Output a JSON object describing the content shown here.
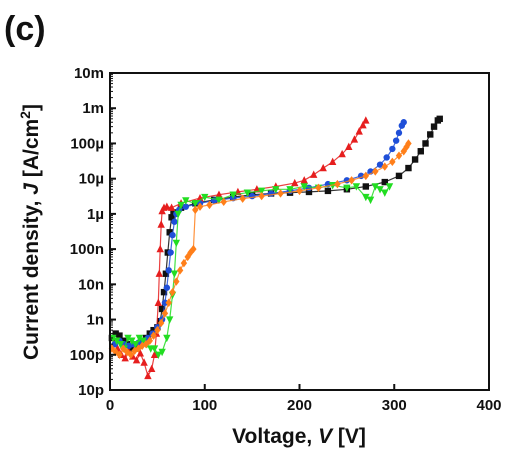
{
  "panel_label": "(c)",
  "chart_data": {
    "type": "scatter",
    "xlabel": "Voltage, V [V]",
    "ylabel": "Current density, J [A/cm2]",
    "x_axis": {
      "min": 0,
      "max": 400,
      "ticks": [
        0,
        100,
        200,
        300,
        400
      ],
      "tick_labels": [
        "0",
        "100",
        "200",
        "300",
        "400"
      ]
    },
    "y_axis": {
      "scale": "log",
      "min": 1e-11,
      "max": 0.01,
      "ticks": [
        1e-11,
        1e-10,
        1e-09,
        1e-08,
        1e-07,
        1e-06,
        1e-05,
        0.0001,
        0.001,
        0.01
      ],
      "tick_labels": [
        "10p",
        "100p",
        "1n",
        "10n",
        "100n",
        "1µ",
        "10µ",
        "100µ",
        "1m",
        "10m"
      ]
    },
    "grid": false,
    "legend": "none",
    "series": [
      {
        "color": "#111111",
        "marker": "square",
        "points": [
          [
            2,
            3e-10
          ],
          [
            6,
            4e-10
          ],
          [
            10,
            3.5e-10
          ],
          [
            14,
            2.5e-10
          ],
          [
            18,
            2e-10
          ],
          [
            22,
            1.6e-10
          ],
          [
            26,
            1.5e-10
          ],
          [
            30,
            1.8e-10
          ],
          [
            34,
            2.2e-10
          ],
          [
            38,
            3e-10
          ],
          [
            42,
            4e-10
          ],
          [
            46,
            5e-10
          ],
          [
            50,
            6e-10
          ],
          [
            53,
            9e-10
          ],
          [
            55,
            2e-09
          ],
          [
            57,
            6e-09
          ],
          [
            59,
            2e-08
          ],
          [
            61,
            8e-08
          ],
          [
            63,
            3e-07
          ],
          [
            65,
            8e-07
          ],
          [
            67,
            1.1e-06
          ],
          [
            75,
            1.5e-06
          ],
          [
            90,
            2e-06
          ],
          [
            110,
            2.5e-06
          ],
          [
            130,
            3e-06
          ],
          [
            150,
            3.5e-06
          ],
          [
            170,
            3.8e-06
          ],
          [
            190,
            4e-06
          ],
          [
            210,
            4.2e-06
          ],
          [
            230,
            4.5e-06
          ],
          [
            250,
            5e-06
          ],
          [
            270,
            6e-06
          ],
          [
            290,
            8e-06
          ],
          [
            305,
            1.2e-05
          ],
          [
            315,
            2e-05
          ],
          [
            322,
            3.5e-05
          ],
          [
            328,
            6e-05
          ],
          [
            333,
            0.0001
          ],
          [
            338,
            0.00018
          ],
          [
            342,
            0.0003
          ],
          [
            346,
            0.00045
          ],
          [
            348,
            0.0005
          ]
        ]
      },
      {
        "color": "#e61e1e",
        "marker": "triangle",
        "points": [
          [
            4,
            2e-10
          ],
          [
            8,
            1.5e-10
          ],
          [
            12,
            1e-10
          ],
          [
            16,
            8e-11
          ],
          [
            20,
            1.2e-10
          ],
          [
            24,
            9e-11
          ],
          [
            28,
            7e-11
          ],
          [
            32,
            1.1e-10
          ],
          [
            36,
            6e-11
          ],
          [
            40,
            2.5e-11
          ],
          [
            44,
            4e-11
          ],
          [
            47,
            1e-10
          ],
          [
            49,
            4e-10
          ],
          [
            51,
            3e-09
          ],
          [
            52,
            2e-08
          ],
          [
            53,
            1e-07
          ],
          [
            54,
            5e-07
          ],
          [
            55,
            1.2e-06
          ],
          [
            57,
            1.5e-06
          ],
          [
            60,
            1.6e-06
          ],
          [
            65,
            1.5e-06
          ],
          [
            75,
            2e-06
          ],
          [
            95,
            2.8e-06
          ],
          [
            115,
            3.5e-06
          ],
          [
            135,
            4.2e-06
          ],
          [
            155,
            5e-06
          ],
          [
            175,
            6e-06
          ],
          [
            195,
            7.5e-06
          ],
          [
            205,
            9e-06
          ],
          [
            215,
            1.3e-05
          ],
          [
            225,
            2e-05
          ],
          [
            235,
            3e-05
          ],
          [
            245,
            5e-05
          ],
          [
            252,
            8e-05
          ],
          [
            258,
            0.00013
          ],
          [
            263,
            0.00022
          ],
          [
            267,
            0.00033
          ],
          [
            270,
            0.00045
          ]
        ]
      },
      {
        "color": "#1f4fd8",
        "marker": "circle",
        "points": [
          [
            5,
            2e-10
          ],
          [
            10,
            2.5e-10
          ],
          [
            15,
            2e-10
          ],
          [
            20,
            1.8e-10
          ],
          [
            25,
            2e-10
          ],
          [
            30,
            2.2e-10
          ],
          [
            35,
            2.5e-10
          ],
          [
            40,
            3e-10
          ],
          [
            45,
            4e-10
          ],
          [
            50,
            6e-10
          ],
          [
            55,
            1e-09
          ],
          [
            58,
            3e-09
          ],
          [
            60,
            8e-09
          ],
          [
            62,
            2.5e-08
          ],
          [
            64,
            8e-08
          ],
          [
            66,
            2.5e-07
          ],
          [
            68,
            6e-07
          ],
          [
            70,
            1e-06
          ],
          [
            73,
            1.3e-06
          ],
          [
            80,
            1.6e-06
          ],
          [
            95,
            2e-06
          ],
          [
            110,
            2.4e-06
          ],
          [
            130,
            2.8e-06
          ],
          [
            150,
            3.2e-06
          ],
          [
            170,
            3.8e-06
          ],
          [
            190,
            4.5e-06
          ],
          [
            210,
            5.5e-06
          ],
          [
            230,
            7e-06
          ],
          [
            250,
            9e-06
          ],
          [
            265,
            1.2e-05
          ],
          [
            275,
            1.6e-05
          ],
          [
            285,
            2.5e-05
          ],
          [
            292,
            4e-05
          ],
          [
            298,
            7e-05
          ],
          [
            302,
            0.00012
          ],
          [
            305,
            0.0002
          ],
          [
            308,
            0.00032
          ],
          [
            310,
            0.0004
          ]
        ]
      },
      {
        "color": "#22dd22",
        "marker": "triangle-down",
        "points": [
          [
            3,
            3e-10
          ],
          [
            7,
            2.5e-10
          ],
          [
            11,
            2e-10
          ],
          [
            15,
            1.5e-10
          ],
          [
            19,
            3e-10
          ],
          [
            23,
            2.5e-10
          ],
          [
            27,
            2e-10
          ],
          [
            31,
            3e-10
          ],
          [
            35,
            2.5e-10
          ],
          [
            39,
            2e-10
          ],
          [
            43,
            1.5e-10
          ],
          [
            47,
            1.5e-10
          ],
          [
            51,
            1e-10
          ],
          [
            55,
            1.2e-10
          ],
          [
            60,
            3e-10
          ],
          [
            63,
            1e-09
          ],
          [
            66,
            5e-09
          ],
          [
            68,
            2e-08
          ],
          [
            70,
            1.5e-07
          ],
          [
            72,
            1e-06
          ],
          [
            75,
            1.8e-06
          ],
          [
            80,
            2.4e-06
          ],
          [
            90,
            2e-06
          ],
          [
            100,
            3e-06
          ],
          [
            115,
            2.5e-06
          ],
          [
            130,
            3.5e-06
          ],
          [
            145,
            4e-06
          ],
          [
            160,
            4.5e-06
          ],
          [
            175,
            5e-06
          ],
          [
            190,
            5e-06
          ],
          [
            205,
            6e-06
          ],
          [
            220,
            5.5e-06
          ],
          [
            235,
            6.5e-06
          ],
          [
            250,
            5.5e-06
          ],
          [
            260,
            6e-06
          ],
          [
            270,
            3e-06
          ],
          [
            275,
            2.5e-06
          ],
          [
            280,
            6e-06
          ],
          [
            285,
            5e-06
          ],
          [
            290,
            4e-06
          ],
          [
            295,
            6e-06
          ]
        ]
      },
      {
        "color": "#ff7f1a",
        "marker": "diamond",
        "points": [
          [
            2,
            1.5e-10
          ],
          [
            6,
            1.2e-10
          ],
          [
            10,
            1e-10
          ],
          [
            14,
            1.5e-10
          ],
          [
            18,
            1.2e-10
          ],
          [
            22,
            1e-10
          ],
          [
            26,
            1.3e-10
          ],
          [
            30,
            1.5e-10
          ],
          [
            34,
            1.8e-10
          ],
          [
            38,
            2e-10
          ],
          [
            42,
            2.5e-10
          ],
          [
            46,
            3.5e-10
          ],
          [
            50,
            5e-10
          ],
          [
            54,
            8e-10
          ],
          [
            58,
            1.5e-09
          ],
          [
            62,
            3e-09
          ],
          [
            66,
            6e-09
          ],
          [
            70,
            1.2e-08
          ],
          [
            74,
            2.5e-08
          ],
          [
            78,
            4e-08
          ],
          [
            82,
            6e-08
          ],
          [
            85,
            8e-08
          ],
          [
            88,
            1e-07
          ],
          [
            90,
            1.3e-06
          ],
          [
            95,
            1.6e-06
          ],
          [
            105,
            1.8e-06
          ],
          [
            120,
            2.2e-06
          ],
          [
            140,
            2.7e-06
          ],
          [
            160,
            3.2e-06
          ],
          [
            180,
            3.8e-06
          ],
          [
            200,
            4.5e-06
          ],
          [
            220,
            5.5e-06
          ],
          [
            240,
            7e-06
          ],
          [
            255,
            9e-06
          ],
          [
            270,
            1.2e-05
          ],
          [
            280,
            1.6e-05
          ],
          [
            290,
            2.2e-05
          ],
          [
            298,
            3e-05
          ],
          [
            305,
            4.5e-05
          ],
          [
            310,
            6e-05
          ],
          [
            313,
            8e-05
          ],
          [
            315,
            0.0001
          ]
        ]
      }
    ]
  }
}
